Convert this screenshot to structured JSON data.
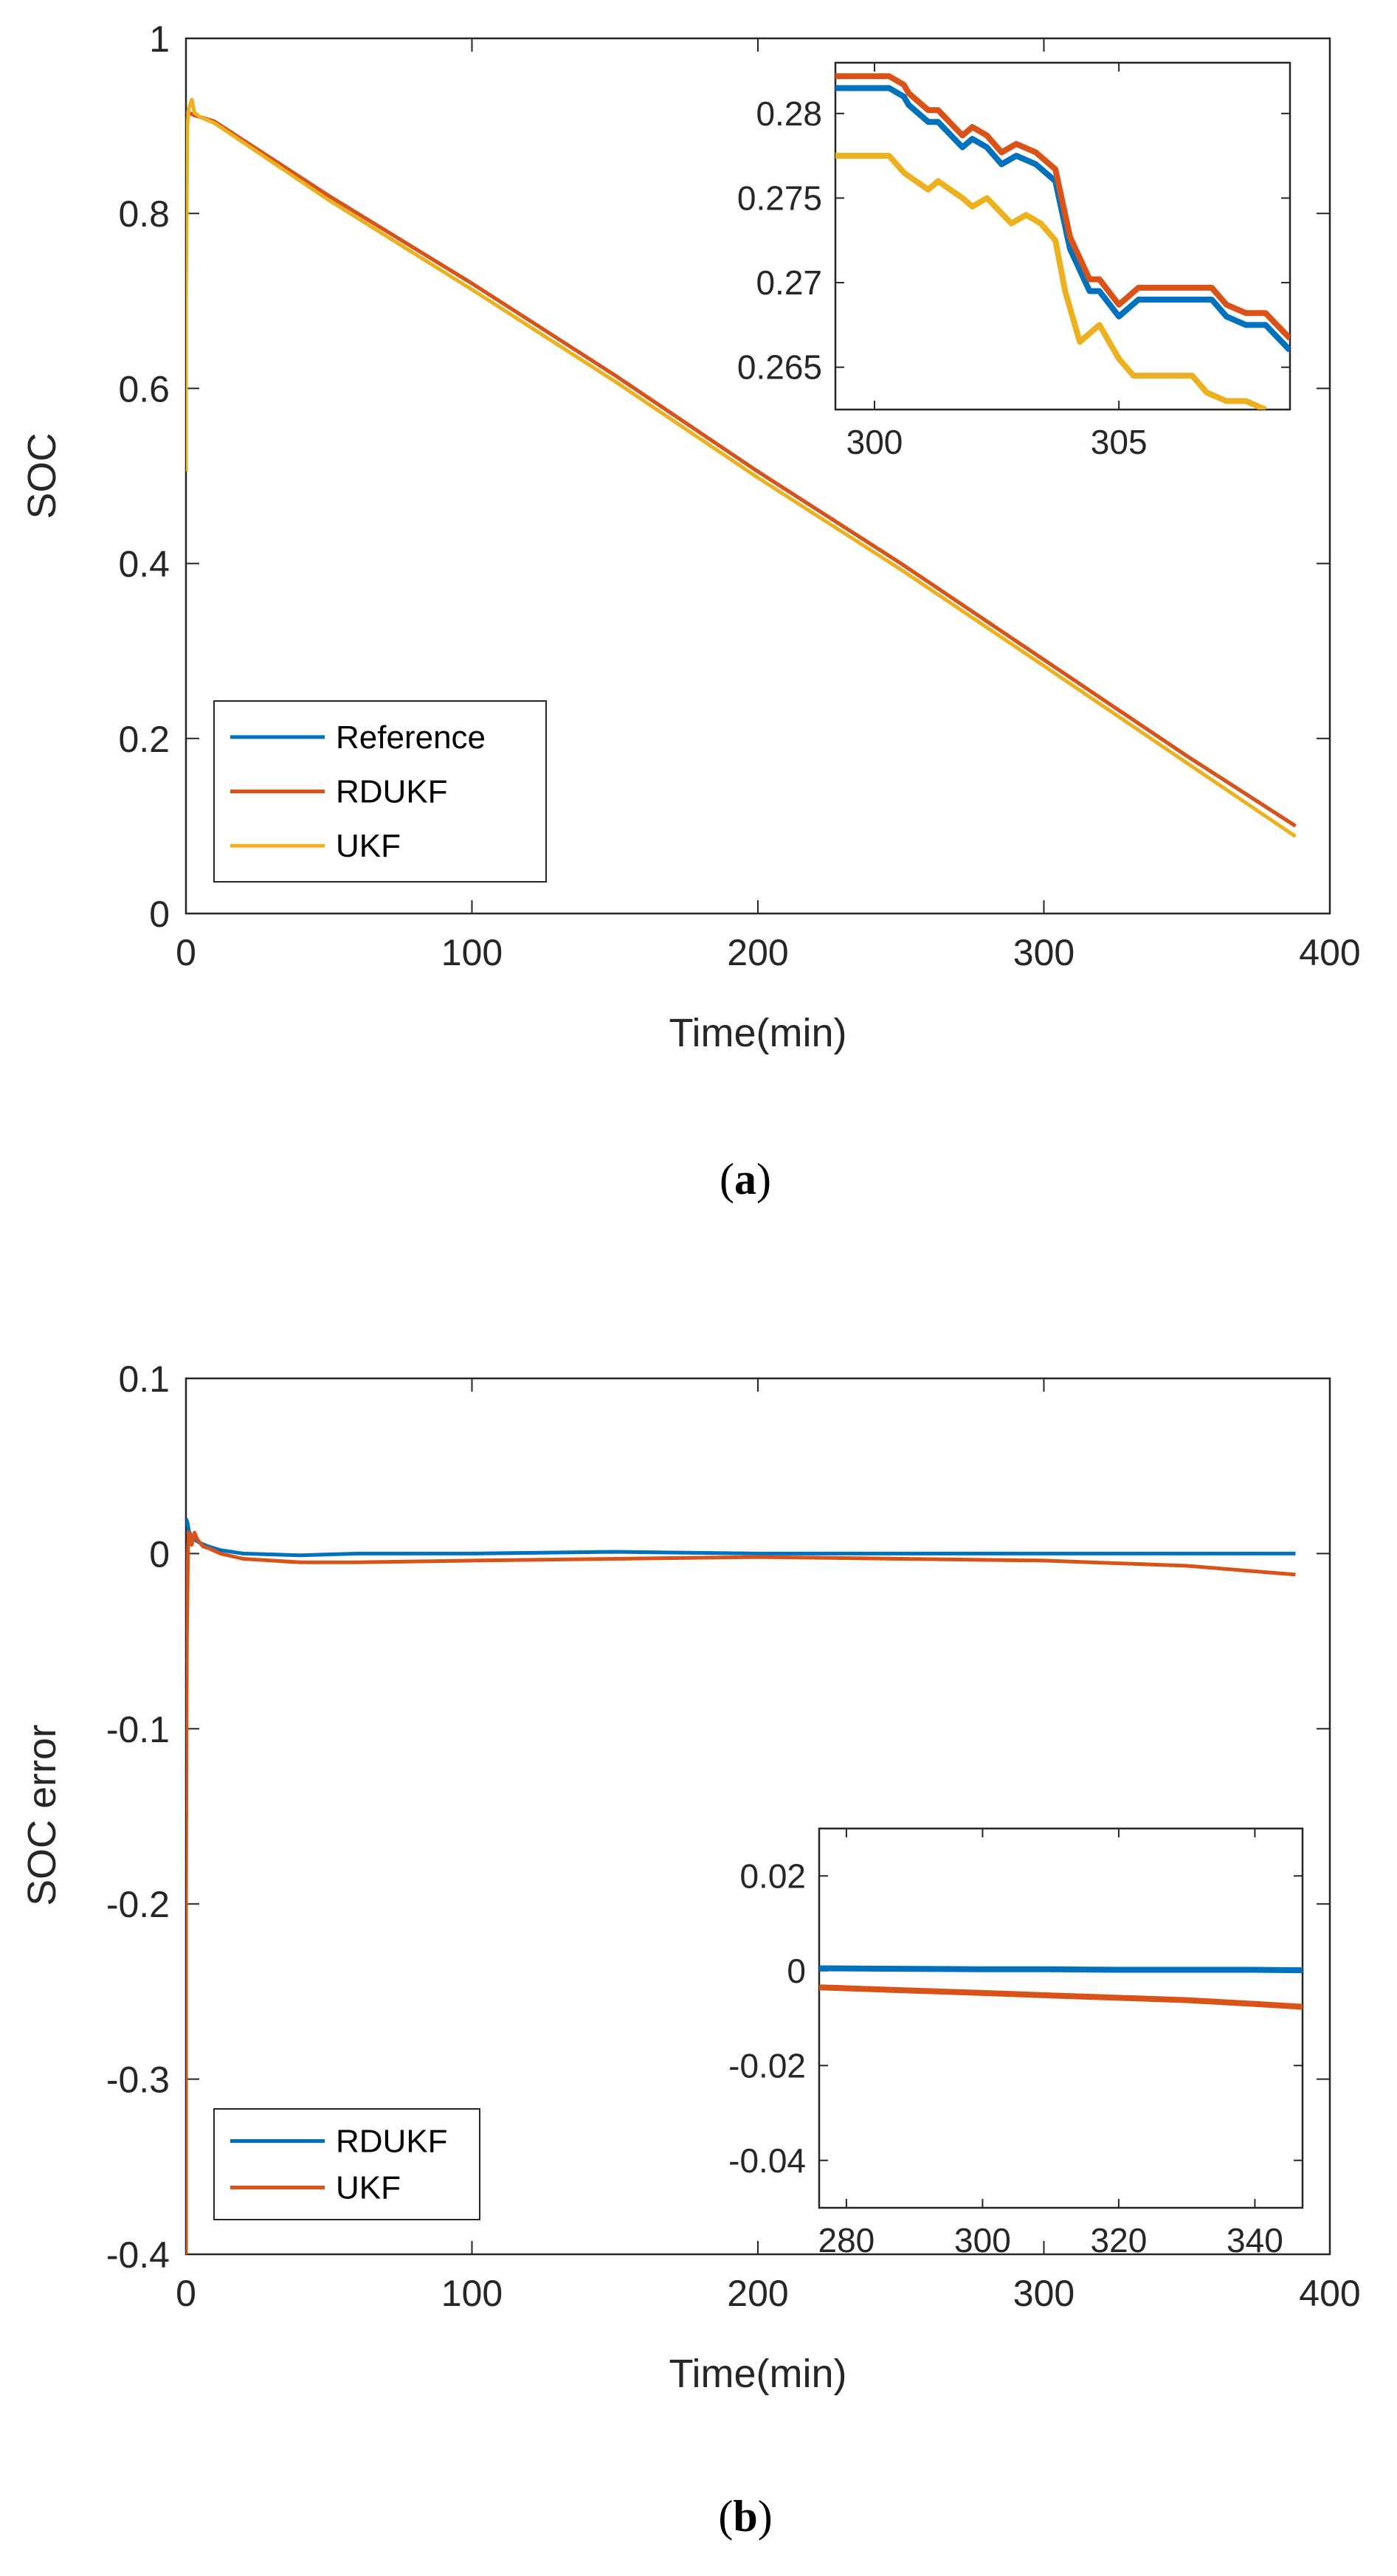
{
  "colors": {
    "blue": "#0072BD",
    "orange": "#D95319",
    "yellow": "#EDB120",
    "axis": "#262626"
  },
  "chart_data": [
    {
      "type": "line",
      "panel": "a",
      "caption_letter": "a",
      "xlabel": "Time(min)",
      "ylabel": "SOC",
      "xlim": [
        0,
        400
      ],
      "ylim": [
        0,
        1
      ],
      "xticks": [
        0,
        100,
        200,
        300,
        400
      ],
      "yticks": [
        0,
        0.2,
        0.4,
        0.6,
        0.8,
        1
      ],
      "legend_position": "bottom-left",
      "series": [
        {
          "name": "Reference",
          "color": "#0072BD",
          "x": [
            0,
            1,
            3,
            5,
            10,
            50,
            100,
            150,
            200,
            250,
            300,
            350,
            388
          ],
          "y": [
            0.915,
            0.915,
            0.912,
            0.91,
            0.905,
            0.82,
            0.72,
            0.615,
            0.505,
            0.4,
            0.29,
            0.18,
            0.1
          ]
        },
        {
          "name": "RDUKF",
          "color": "#D95319",
          "x": [
            0,
            1,
            3,
            5,
            10,
            50,
            100,
            150,
            200,
            250,
            300,
            350,
            388
          ],
          "y": [
            0.915,
            0.915,
            0.912,
            0.91,
            0.905,
            0.82,
            0.72,
            0.615,
            0.505,
            0.4,
            0.29,
            0.18,
            0.1
          ]
        },
        {
          "name": "UKF",
          "color": "#EDB120",
          "x": [
            0,
            0,
            0.5,
            1,
            2,
            3,
            5,
            10,
            50,
            100,
            150,
            200,
            250,
            300,
            350,
            388
          ],
          "y": [
            0.505,
            0.7,
            0.9,
            0.92,
            0.93,
            0.915,
            0.91,
            0.903,
            0.815,
            0.713,
            0.608,
            0.498,
            0.393,
            0.283,
            0.172,
            0.088
          ]
        }
      ],
      "inset": {
        "xlim": [
          299.2,
          308.5
        ],
        "ylim": [
          0.2625,
          0.283
        ],
        "xticks": [
          300,
          305
        ],
        "yticks": [
          0.265,
          0.27,
          0.275,
          0.28
        ],
        "ytick_labels": [
          "0.265",
          "0.27",
          "0.275",
          "0.28"
        ],
        "series": [
          {
            "name": "Reference",
            "color": "#0072BD",
            "x": [
              299.2,
              299.5,
              300.3,
              300.6,
              300.7,
              301.1,
              301.3,
              301.8,
              302.0,
              302.3,
              302.6,
              302.9,
              303.3,
              303.7,
              304.0,
              304.4,
              304.6,
              305.0,
              305.4,
              305.7,
              306.9,
              307.2,
              307.6,
              308.0,
              308.5
            ],
            "y": [
              0.2815,
              0.2815,
              0.2815,
              0.281,
              0.2805,
              0.2795,
              0.2795,
              0.278,
              0.2785,
              0.278,
              0.277,
              0.2775,
              0.277,
              0.276,
              0.272,
              0.2695,
              0.2695,
              0.268,
              0.269,
              0.269,
              0.269,
              0.268,
              0.2675,
              0.2675,
              0.266
            ]
          },
          {
            "name": "RDUKF",
            "color": "#D95319",
            "x": [
              299.2,
              299.5,
              300.3,
              300.6,
              300.7,
              301.1,
              301.3,
              301.8,
              302.0,
              302.3,
              302.6,
              302.9,
              303.3,
              303.7,
              304.0,
              304.4,
              304.6,
              305.0,
              305.4,
              305.7,
              306.9,
              307.2,
              307.6,
              308.0,
              308.5
            ],
            "y": [
              0.2822,
              0.2822,
              0.2822,
              0.2817,
              0.2812,
              0.2802,
              0.2802,
              0.2787,
              0.2792,
              0.2787,
              0.2777,
              0.2782,
              0.2777,
              0.2767,
              0.2727,
              0.2702,
              0.2702,
              0.2687,
              0.2697,
              0.2697,
              0.2697,
              0.2687,
              0.2682,
              0.2682,
              0.2667
            ]
          },
          {
            "name": "UKF",
            "color": "#EDB120",
            "x": [
              299.2,
              300.3,
              300.6,
              301.1,
              301.3,
              301.8,
              302.0,
              302.3,
              302.8,
              303.1,
              303.4,
              303.7,
              303.9,
              304.2,
              304.6,
              305.0,
              305.3,
              305.6,
              306.5,
              306.8,
              307.2,
              307.6,
              308.0
            ],
            "y": [
              0.2775,
              0.2775,
              0.2765,
              0.2755,
              0.276,
              0.275,
              0.2745,
              0.275,
              0.2735,
              0.274,
              0.2735,
              0.2725,
              0.2695,
              0.2665,
              0.2675,
              0.2655,
              0.2645,
              0.2645,
              0.2645,
              0.2635,
              0.263,
              0.263,
              0.2625
            ]
          }
        ]
      }
    },
    {
      "type": "line",
      "panel": "b",
      "caption_letter": "b",
      "xlabel": "Time(min)",
      "ylabel": "SOC error",
      "xlim": [
        0,
        400
      ],
      "ylim": [
        -0.4,
        0.1
      ],
      "xticks": [
        0,
        100,
        200,
        300,
        400
      ],
      "yticks": [
        -0.4,
        -0.3,
        -0.2,
        -0.1,
        0,
        0.1
      ],
      "ytick_labels": [
        "-0.4",
        "-0.3",
        "-0.2",
        "-0.1",
        "0",
        "0.1"
      ],
      "legend_position": "bottom-left",
      "series": [
        {
          "name": "RDUKF",
          "color": "#0072BD",
          "x": [
            0,
            0.5,
            1,
            2,
            3,
            5,
            8,
            12,
            20,
            40,
            60,
            100,
            150,
            200,
            250,
            300,
            350,
            388
          ],
          "y": [
            0.02,
            0.018,
            0.013,
            0.009,
            0.008,
            0.006,
            0.004,
            0.002,
            0.0,
            -0.001,
            0.0,
            0.0,
            0.001,
            0.0,
            0.0,
            0.0,
            0.0,
            0.0
          ]
        },
        {
          "name": "UKF",
          "color": "#D95319",
          "x": [
            0,
            0,
            0.3,
            0.7,
            1,
            1.5,
            2,
            3,
            4,
            6,
            8,
            12,
            20,
            40,
            60,
            100,
            150,
            200,
            250,
            300,
            350,
            388
          ],
          "y": [
            -0.4,
            -0.2,
            -0.05,
            0.0,
            0.012,
            0.01,
            0.005,
            0.012,
            0.008,
            0.004,
            0.003,
            0.0,
            -0.003,
            -0.005,
            -0.005,
            -0.004,
            -0.003,
            -0.002,
            -0.003,
            -0.004,
            -0.007,
            -0.012
          ]
        }
      ],
      "inset": {
        "xlim": [
          276,
          347
        ],
        "ylim": [
          -0.05,
          0.03
        ],
        "xticks": [
          280,
          300,
          320,
          340
        ],
        "yticks": [
          -0.04,
          -0.02,
          0,
          0.02
        ],
        "ytick_labels": [
          "-0.04",
          "-0.02",
          "0",
          "0.02"
        ],
        "series": [
          {
            "name": "RDUKF",
            "color": "#0072BD",
            "x": [
              276,
              290,
              300,
              310,
              320,
              330,
              340,
              347
            ],
            "y": [
              0.0005,
              0.0004,
              0.0003,
              0.0003,
              0.0002,
              0.0002,
              0.0002,
              0.0001
            ]
          },
          {
            "name": "UKF",
            "color": "#D95319",
            "x": [
              276,
              290,
              300,
              310,
              320,
              330,
              340,
              347
            ],
            "y": [
              -0.0035,
              -0.0042,
              -0.0047,
              -0.0052,
              -0.0057,
              -0.0062,
              -0.007,
              -0.0076
            ]
          }
        ]
      }
    }
  ]
}
